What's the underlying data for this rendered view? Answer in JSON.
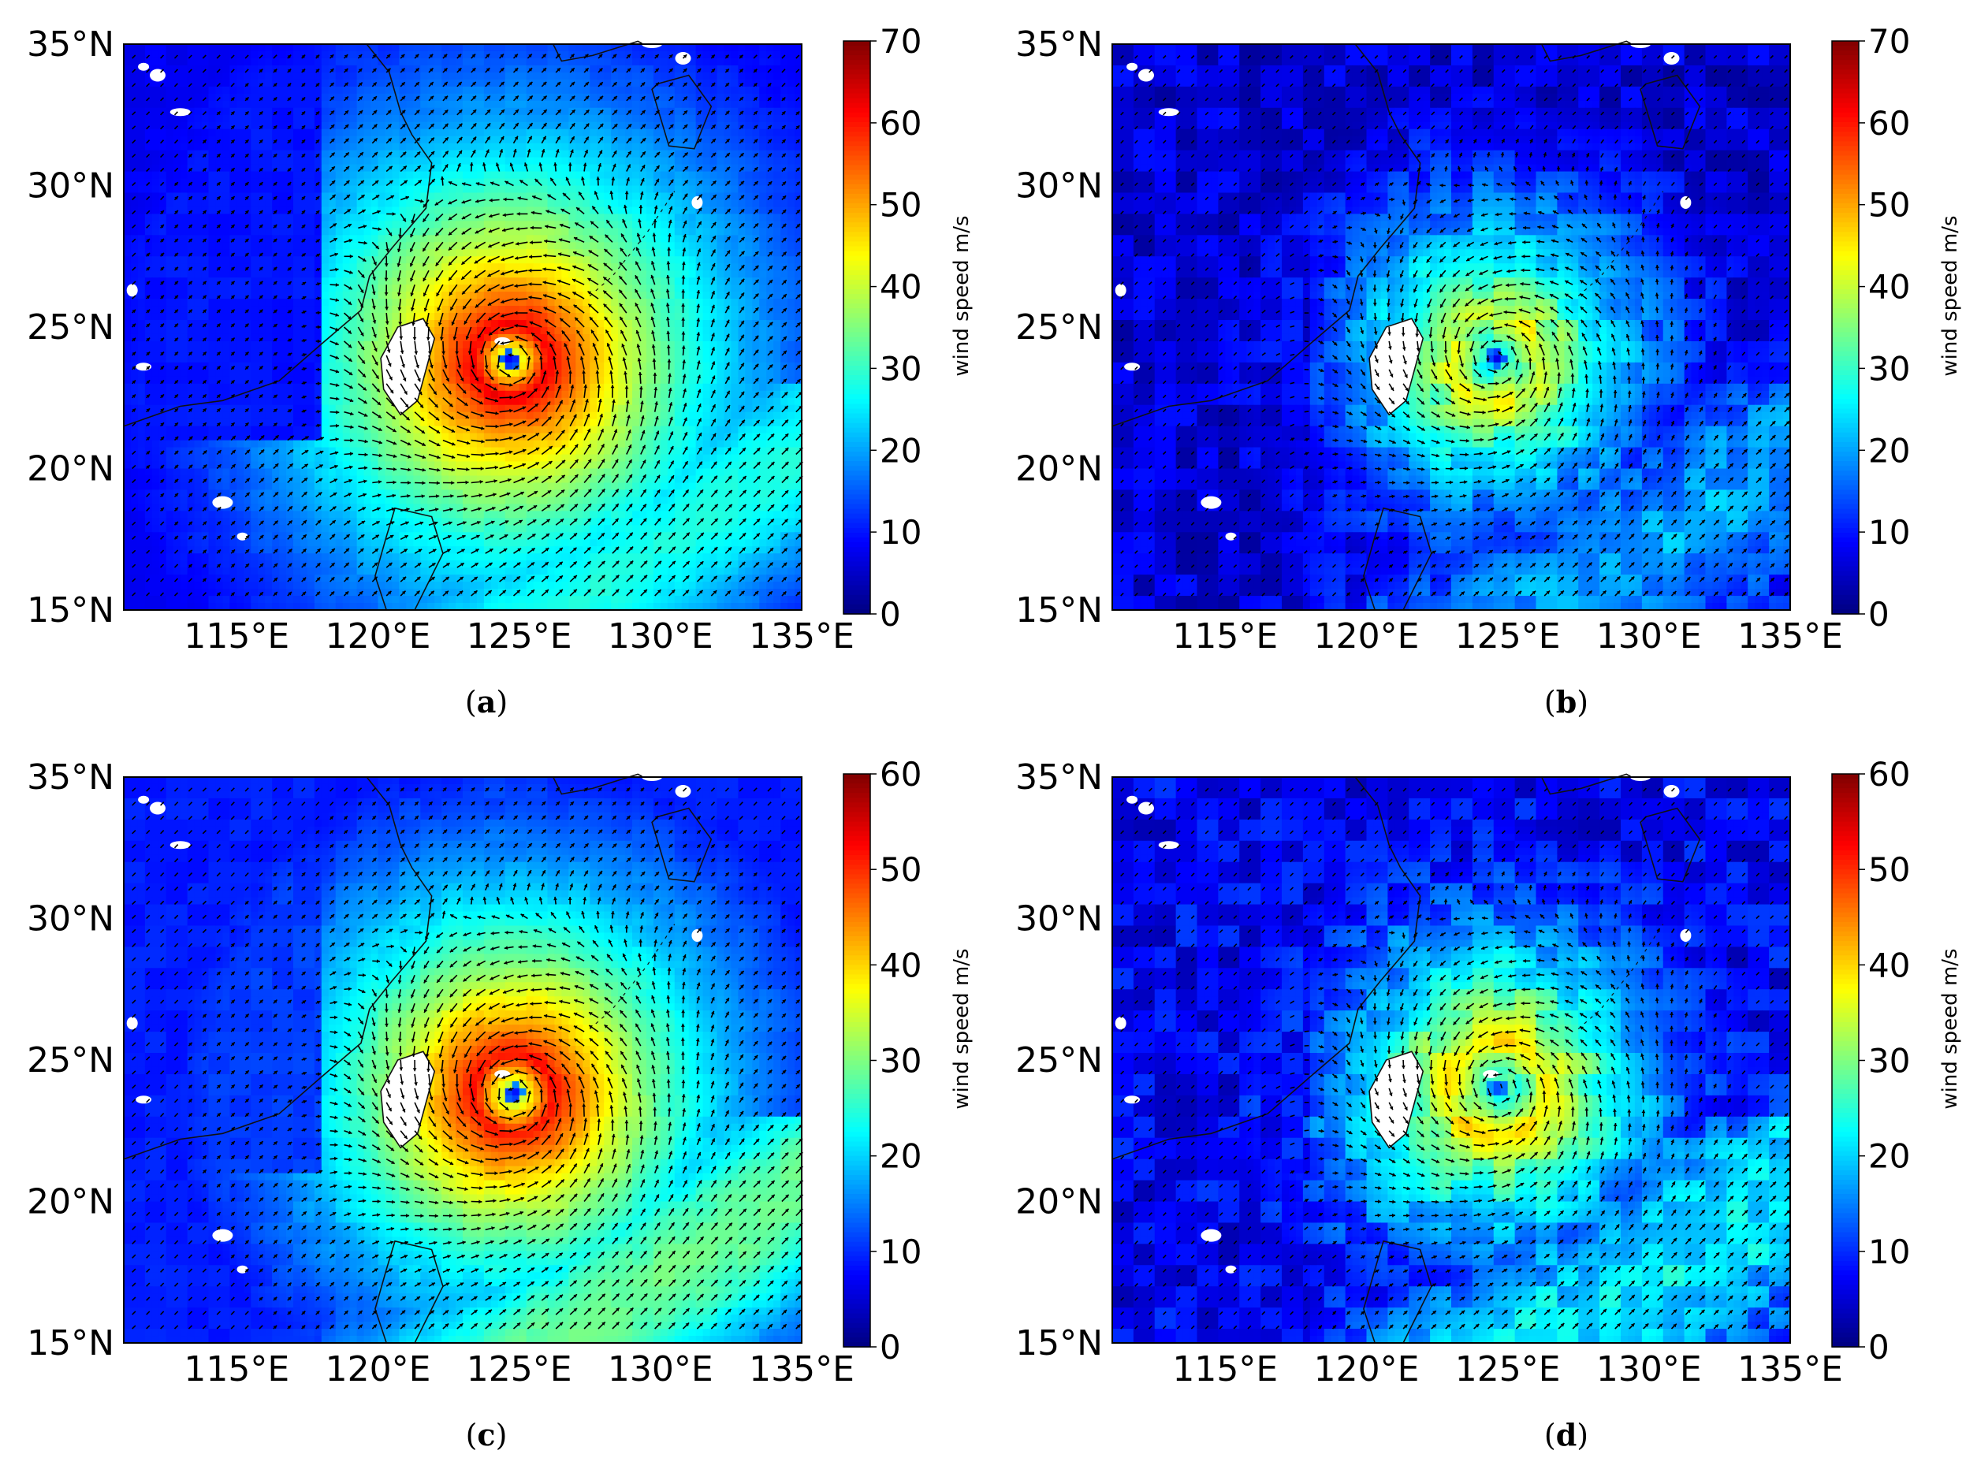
{
  "chart_data": [
    {
      "type": "heatmap",
      "panel_label": "a",
      "colorbar_label": "wind speed m/s",
      "colorbar_range": [
        0,
        70
      ],
      "colorbar_ticks": [
        "0",
        "10",
        "20",
        "30",
        "40",
        "50",
        "60",
        "70"
      ],
      "x_ticks": [
        "115°E",
        "120°E",
        "125°E",
        "130°E",
        "135°E"
      ],
      "y_ticks": [
        "15°N",
        "20°N",
        "25°N",
        "30°N",
        "35°N"
      ],
      "lon_range": [
        111,
        135
      ],
      "lat_range": [
        15,
        35
      ],
      "cyclone_center": [
        124.7,
        23.8
      ],
      "max_wind": 62
    },
    {
      "type": "heatmap",
      "panel_label": "b",
      "colorbar_label": "wind speed m/s",
      "colorbar_range": [
        0,
        70
      ],
      "colorbar_ticks": [
        "0",
        "10",
        "20",
        "30",
        "40",
        "50",
        "60",
        "70"
      ],
      "x_ticks": [
        "115°E",
        "120°E",
        "125°E",
        "130°E",
        "135°E"
      ],
      "y_ticks": [
        "15°N",
        "20°N",
        "25°N",
        "30°N",
        "35°N"
      ],
      "lon_range": [
        111,
        135
      ],
      "lat_range": [
        15,
        35
      ],
      "cyclone_center": [
        124.6,
        23.9
      ],
      "max_wind": 42
    },
    {
      "type": "heatmap",
      "panel_label": "c",
      "colorbar_label": "wind speed m/s",
      "colorbar_range": [
        0,
        60
      ],
      "colorbar_ticks": [
        "0",
        "10",
        "20",
        "30",
        "40",
        "50",
        "60"
      ],
      "x_ticks": [
        "115°E",
        "120°E",
        "125°E",
        "130°E",
        "135°E"
      ],
      "y_ticks": [
        "15°N",
        "20°N",
        "25°N",
        "30°N",
        "35°N"
      ],
      "lon_range": [
        111,
        135
      ],
      "lat_range": [
        15,
        35
      ],
      "cyclone_center": [
        124.8,
        23.8
      ],
      "max_wind": 52
    },
    {
      "type": "heatmap",
      "panel_label": "d",
      "colorbar_label": "wind speed m/s",
      "colorbar_range": [
        0,
        60
      ],
      "colorbar_ticks": [
        "0",
        "10",
        "20",
        "30",
        "40",
        "50",
        "60"
      ],
      "x_ticks": [
        "115°E",
        "120°E",
        "125°E",
        "130°E",
        "135°E"
      ],
      "y_ticks": [
        "15°N",
        "20°N",
        "25°N",
        "30°N",
        "35°N"
      ],
      "lon_range": [
        111,
        135
      ],
      "lat_range": [
        15,
        35
      ],
      "cyclone_center": [
        124.7,
        24.0
      ],
      "max_wind": 38
    }
  ]
}
